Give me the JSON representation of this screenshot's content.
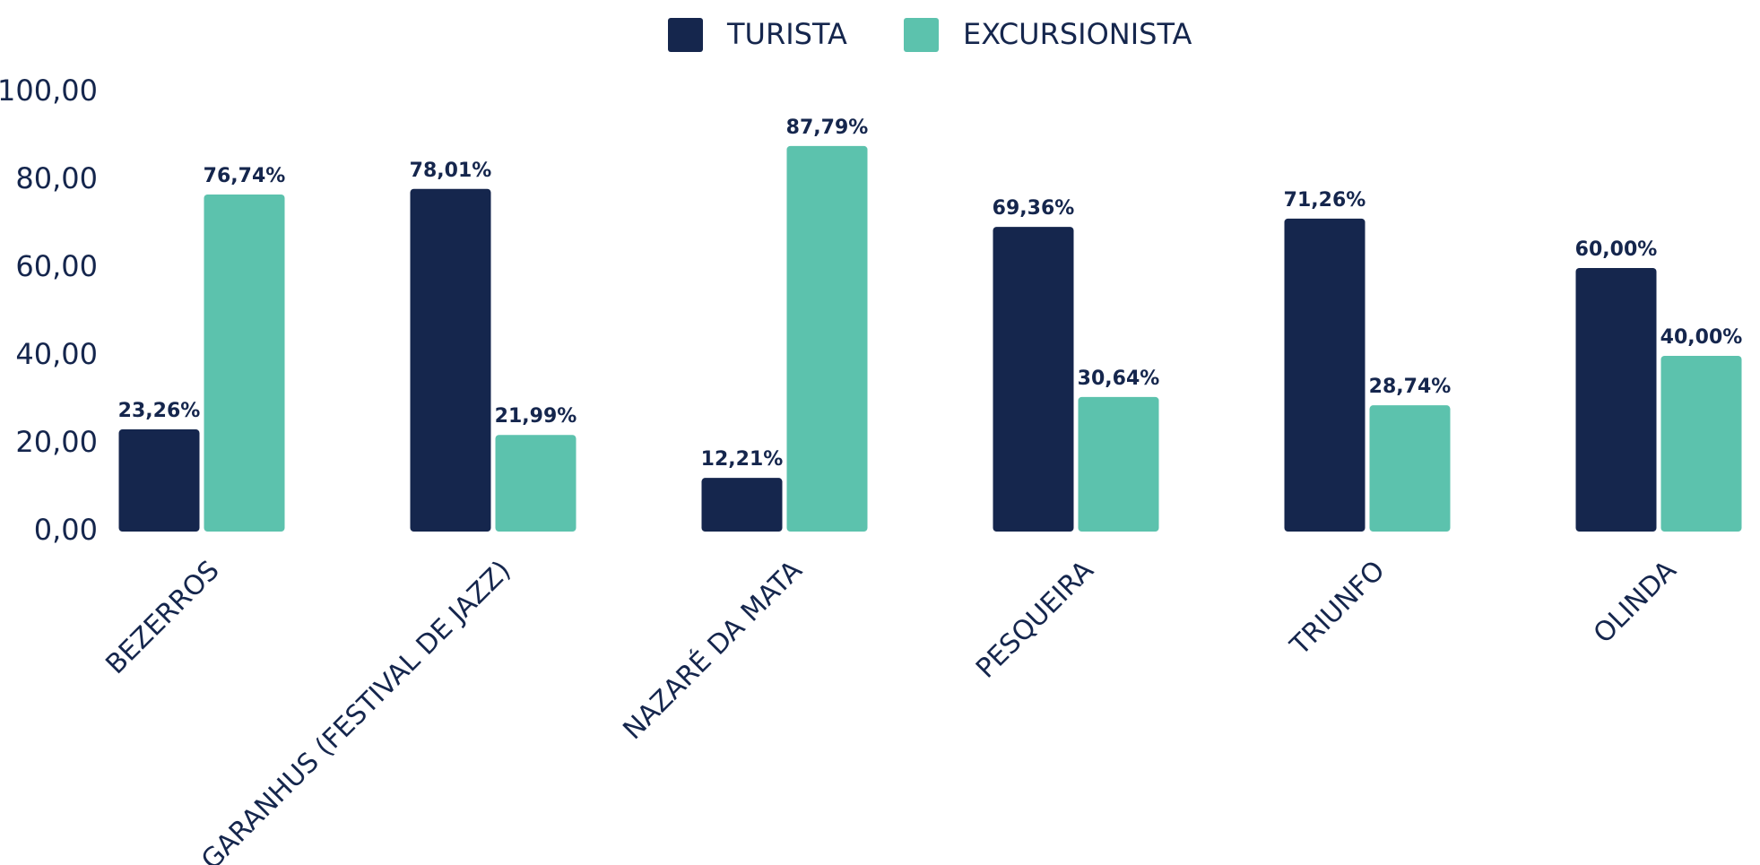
{
  "chart_data": {
    "type": "bar",
    "categories": [
      "BEZERROS",
      "GARANHUS (FESTIVAL DE JAZZ)",
      "NAZARÉ DA MATA",
      "PESQUEIRA",
      "TRIUNFO",
      "OLINDA"
    ],
    "series": [
      {
        "name": "TURISTA",
        "color": "#15264d",
        "values": [
          23.26,
          78.01,
          12.21,
          69.36,
          71.26,
          60.0
        ],
        "value_labels": [
          "23,26%",
          "78,01%",
          "12,21%",
          "69,36%",
          "71,26%",
          "60,00%"
        ]
      },
      {
        "name": "EXCURSIONISTA",
        "color": "#5cc2ad",
        "values": [
          76.74,
          21.99,
          87.79,
          30.64,
          28.74,
          40.0
        ],
        "value_labels": [
          "76,74%",
          "21,99%",
          "87,79%",
          "30,64%",
          "28,74%",
          "40,00%"
        ]
      }
    ],
    "ylim": [
      0,
      100
    ],
    "yticks": [
      {
        "value": 0,
        "label": "0,00"
      },
      {
        "value": 20,
        "label": "20,00"
      },
      {
        "value": 40,
        "label": "40,00"
      },
      {
        "value": 60,
        "label": "60,00"
      },
      {
        "value": 80,
        "label": "80,00"
      },
      {
        "value": 100,
        "label": "100,00"
      }
    ],
    "grid": false,
    "legend": "top"
  }
}
